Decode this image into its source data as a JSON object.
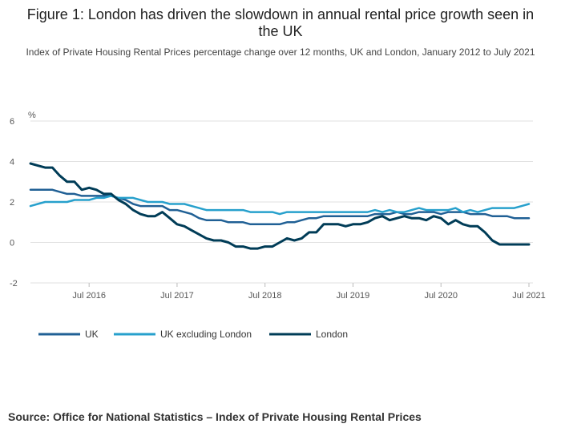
{
  "chart_data": {
    "type": "line",
    "title": "Figure 1: London has driven the slowdown in annual rental price growth seen in the UK",
    "subtitle": "Index of Private Housing Rental Prices percentage change over 12 months, UK and London, January 2012 to July 2021",
    "ylabel": "%",
    "ylim": [
      -2,
      6
    ],
    "yticks": [
      6,
      4,
      2,
      0,
      -2
    ],
    "xlim": [
      "2015-11",
      "2021-07"
    ],
    "xtick_labels": [
      "Jul 2016",
      "Jul 2017",
      "Jul 2018",
      "Jul 2019",
      "Jul 2020",
      "Jul 2021"
    ],
    "xtick_dates": [
      "2016-07",
      "2017-07",
      "2018-07",
      "2019-07",
      "2020-07",
      "2021-07"
    ],
    "grid": true,
    "legend_position": "bottom-left",
    "x": [
      "2015-11",
      "2015-12",
      "2016-01",
      "2016-02",
      "2016-03",
      "2016-04",
      "2016-05",
      "2016-06",
      "2016-07",
      "2016-08",
      "2016-09",
      "2016-10",
      "2016-11",
      "2016-12",
      "2017-01",
      "2017-02",
      "2017-03",
      "2017-04",
      "2017-05",
      "2017-06",
      "2017-07",
      "2017-08",
      "2017-09",
      "2017-10",
      "2017-11",
      "2017-12",
      "2018-01",
      "2018-02",
      "2018-03",
      "2018-04",
      "2018-05",
      "2018-06",
      "2018-07",
      "2018-08",
      "2018-09",
      "2018-10",
      "2018-11",
      "2018-12",
      "2019-01",
      "2019-02",
      "2019-03",
      "2019-04",
      "2019-05",
      "2019-06",
      "2019-07",
      "2019-08",
      "2019-09",
      "2019-10",
      "2019-11",
      "2019-12",
      "2020-01",
      "2020-02",
      "2020-03",
      "2020-04",
      "2020-05",
      "2020-06",
      "2020-07",
      "2020-08",
      "2020-09",
      "2020-10",
      "2020-11",
      "2020-12",
      "2021-01",
      "2021-02",
      "2021-03",
      "2021-04",
      "2021-05",
      "2021-06",
      "2021-07"
    ],
    "series": [
      {
        "name": "UK",
        "color": "#206095",
        "values": [
          2.6,
          2.6,
          2.6,
          2.6,
          2.5,
          2.4,
          2.4,
          2.3,
          2.3,
          2.3,
          2.3,
          2.3,
          2.2,
          2.1,
          1.9,
          1.8,
          1.8,
          1.8,
          1.8,
          1.6,
          1.6,
          1.5,
          1.4,
          1.2,
          1.1,
          1.1,
          1.1,
          1.0,
          1.0,
          1.0,
          0.9,
          0.9,
          0.9,
          0.9,
          0.9,
          1.0,
          1.0,
          1.1,
          1.2,
          1.2,
          1.3,
          1.3,
          1.3,
          1.3,
          1.3,
          1.3,
          1.3,
          1.4,
          1.4,
          1.4,
          1.5,
          1.4,
          1.4,
          1.5,
          1.5,
          1.5,
          1.4,
          1.5,
          1.5,
          1.5,
          1.4,
          1.4,
          1.4,
          1.3,
          1.3,
          1.3,
          1.2,
          1.2,
          1.2
        ]
      },
      {
        "name": "UK excluding London",
        "color": "#27a0cc",
        "values": [
          1.8,
          1.9,
          2.0,
          2.0,
          2.0,
          2.0,
          2.1,
          2.1,
          2.1,
          2.2,
          2.2,
          2.3,
          2.2,
          2.2,
          2.2,
          2.1,
          2.0,
          2.0,
          2.0,
          1.9,
          1.9,
          1.9,
          1.8,
          1.7,
          1.6,
          1.6,
          1.6,
          1.6,
          1.6,
          1.6,
          1.5,
          1.5,
          1.5,
          1.5,
          1.4,
          1.5,
          1.5,
          1.5,
          1.5,
          1.5,
          1.5,
          1.5,
          1.5,
          1.5,
          1.5,
          1.5,
          1.5,
          1.6,
          1.5,
          1.6,
          1.5,
          1.5,
          1.6,
          1.7,
          1.6,
          1.6,
          1.6,
          1.6,
          1.7,
          1.5,
          1.6,
          1.5,
          1.6,
          1.7,
          1.7,
          1.7,
          1.7,
          1.8,
          1.9
        ]
      },
      {
        "name": "London",
        "color": "#003c57",
        "values": [
          3.9,
          3.8,
          3.7,
          3.7,
          3.3,
          3.0,
          3.0,
          2.6,
          2.7,
          2.6,
          2.4,
          2.4,
          2.1,
          1.9,
          1.6,
          1.4,
          1.3,
          1.3,
          1.5,
          1.2,
          0.9,
          0.8,
          0.6,
          0.4,
          0.2,
          0.1,
          0.1,
          0.0,
          -0.2,
          -0.2,
          -0.3,
          -0.3,
          -0.2,
          -0.2,
          0.0,
          0.2,
          0.1,
          0.2,
          0.5,
          0.5,
          0.9,
          0.9,
          0.9,
          0.8,
          0.9,
          0.9,
          1.0,
          1.2,
          1.3,
          1.1,
          1.2,
          1.3,
          1.2,
          1.2,
          1.1,
          1.3,
          1.2,
          0.9,
          1.1,
          0.9,
          0.8,
          0.8,
          0.5,
          0.1,
          -0.1,
          -0.1,
          -0.1,
          -0.1,
          -0.1
        ]
      }
    ]
  },
  "source": "Source: Office for National Statistics – Index of Private Housing Rental Prices"
}
